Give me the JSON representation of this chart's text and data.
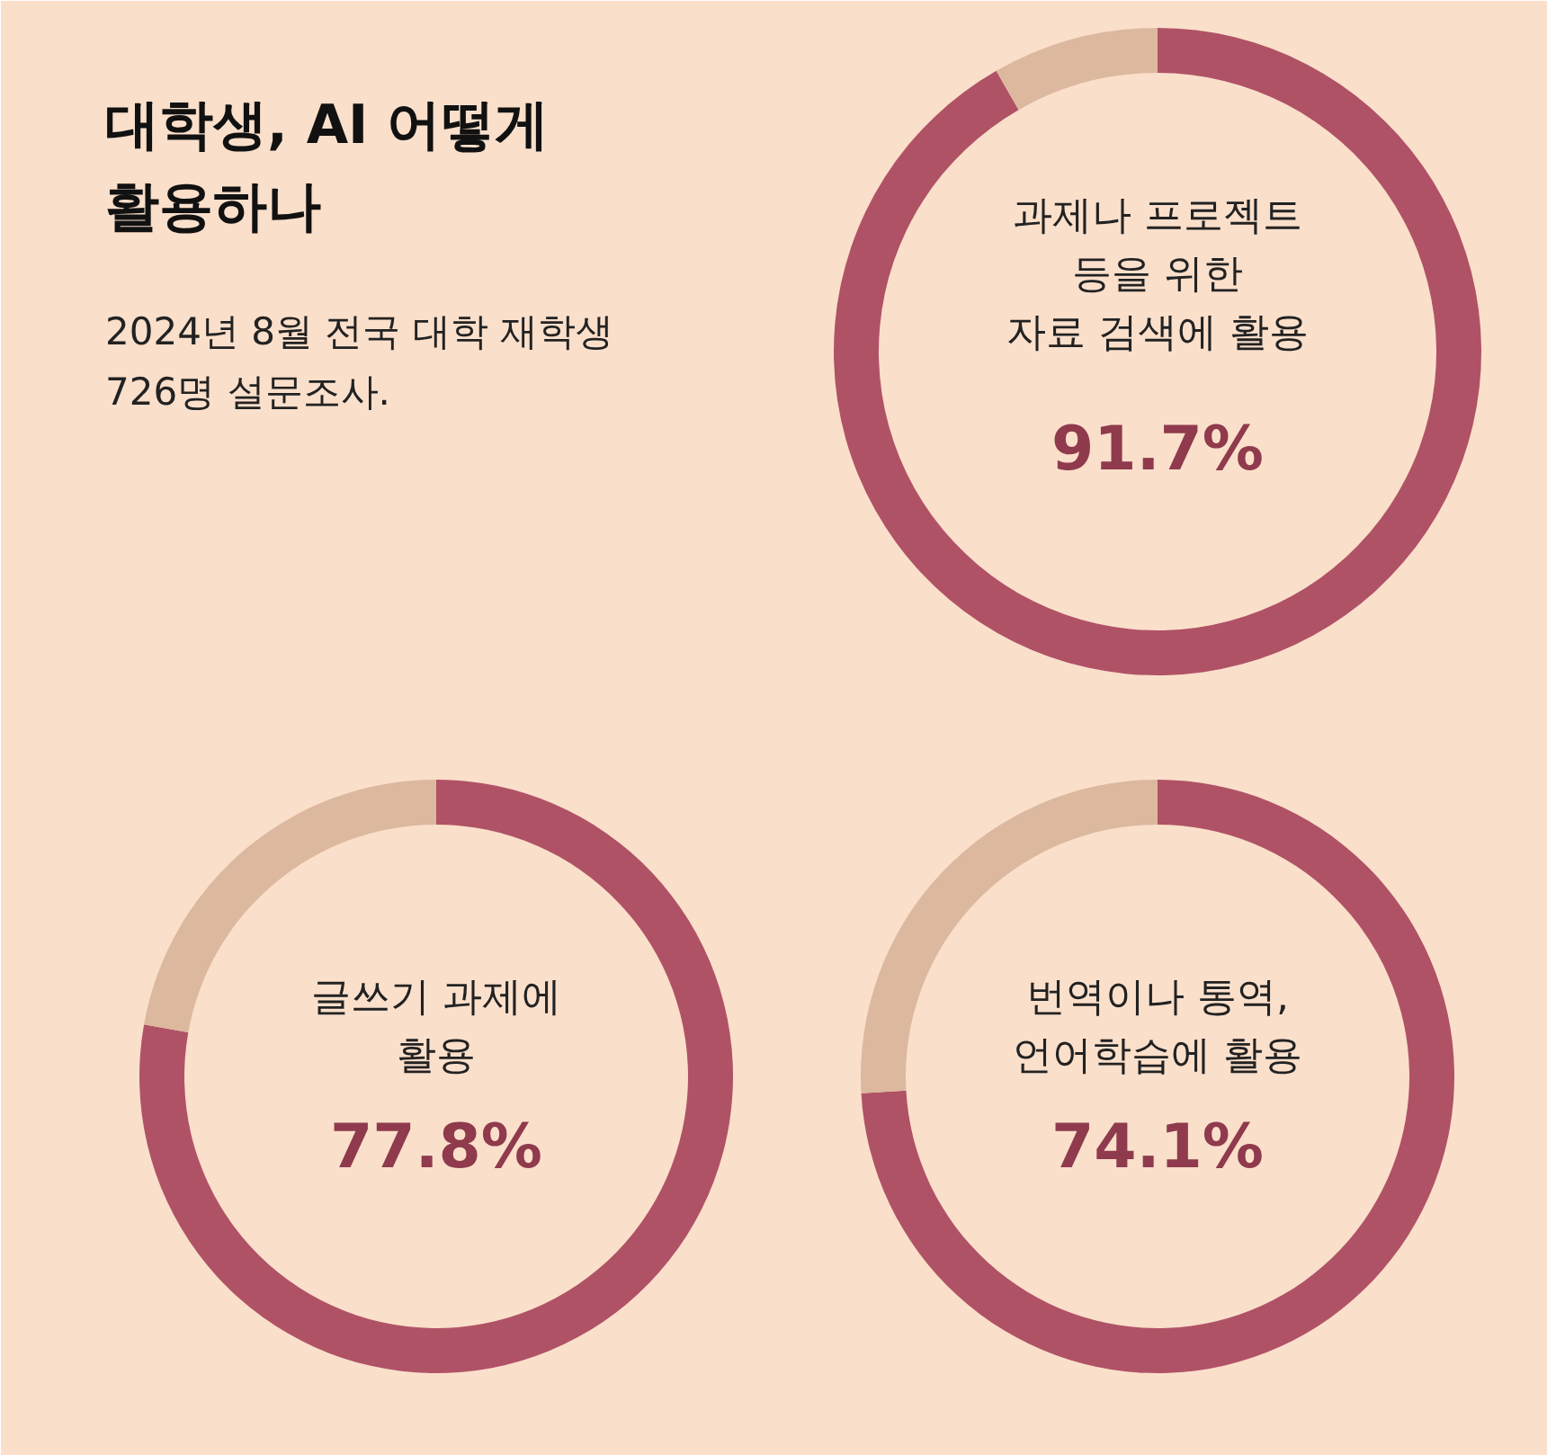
{
  "chart_data": [
    {
      "type": "donut",
      "title": "대학생, AI 어떻게\n활용하나",
      "subtitle": "2024년 8월 전국 대학 재학생\n726명 설문조사.",
      "categories": [
        "과제나 프로젝트\n등을 위한\n자료 검색에 활용",
        null
      ],
      "values": [
        91.7,
        8.3
      ],
      "colors": [
        "#b05266",
        "#dcb89e"
      ],
      "value_labels": [
        "91.7%",
        null
      ]
    },
    {
      "type": "donut",
      "categories": [
        "글쓰기 과제에\n활용",
        null
      ],
      "values": [
        77.8,
        22.2
      ],
      "colors": [
        "#b05266",
        "#dcb89e"
      ],
      "value_labels": [
        "77.8%",
        null
      ]
    },
    {
      "type": "donut",
      "categories": [
        "번역이나 통역,\n언어학습에 활용",
        null
      ],
      "values": [
        74.1,
        25.9
      ],
      "colors": [
        "#b05266",
        "#dcb89e"
      ],
      "value_labels": [
        "74.1%",
        null
      ]
    }
  ]
}
